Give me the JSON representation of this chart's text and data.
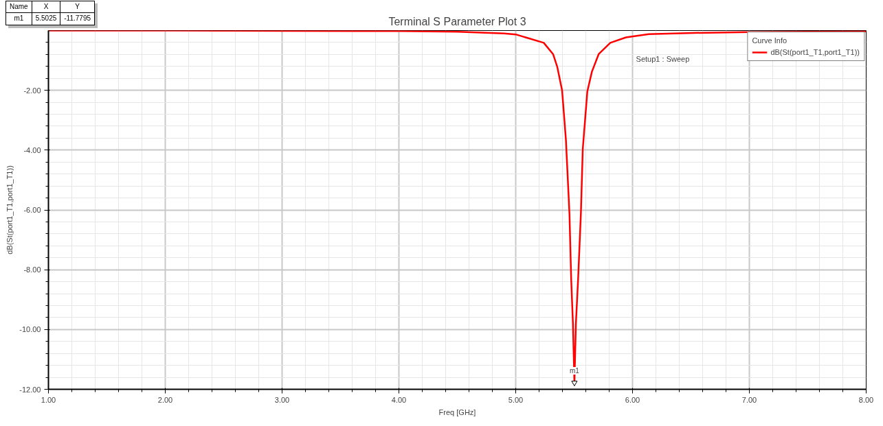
{
  "chart_data": {
    "type": "line",
    "title": "Terminal S Parameter Plot 3",
    "xlabel": "Freq [GHz]",
    "ylabel": "dB(St(port1_T1,port1_T1))",
    "legend_title": "Curve Info",
    "legend": "top right",
    "grid": true,
    "marker": "none",
    "line_style": "solid",
    "xlim": [
      1,
      8
    ],
    "ylim": [
      -12,
      0
    ],
    "xticks": [
      {
        "value": 1,
        "label": "1.00"
      },
      {
        "value": 2,
        "label": "2.00"
      },
      {
        "value": 3,
        "label": "3.00"
      },
      {
        "value": 4,
        "label": "4.00"
      },
      {
        "value": 5,
        "label": "5.00"
      },
      {
        "value": 6,
        "label": "6.00"
      },
      {
        "value": 7,
        "label": "7.00"
      },
      {
        "value": 8,
        "label": "8.00"
      }
    ],
    "yticks": [
      {
        "value": -12,
        "label": "-12.00"
      },
      {
        "value": -10,
        "label": "-10.00"
      },
      {
        "value": -8,
        "label": "-8.00"
      },
      {
        "value": -6,
        "label": "-6.00"
      },
      {
        "value": -4,
        "label": "-4.00"
      },
      {
        "value": -2,
        "label": "-2.00"
      }
    ],
    "series": [
      {
        "name": "dB(St(port1_T1,port1_T1))",
        "color": "#ff0000",
        "x": [
          1.0,
          2.0,
          3.0,
          4.0,
          4.5,
          4.9,
          5.0,
          5.24,
          5.32,
          5.356,
          5.397,
          5.43,
          5.46,
          5.475,
          5.49,
          5.5025,
          5.515,
          5.534,
          5.558,
          5.574,
          5.613,
          5.652,
          5.71,
          5.81,
          5.944,
          6.14,
          6.53,
          7.0,
          8.0
        ],
        "values": [
          0,
          0,
          -0.01,
          -0.02,
          -0.04,
          -0.1,
          -0.13,
          -0.41,
          -0.79,
          -1.22,
          -2.0,
          -3.67,
          -6.12,
          -8.33,
          -9.82,
          -11.78,
          -9.82,
          -8.33,
          -6.12,
          -3.97,
          -2.04,
          -1.38,
          -0.79,
          -0.41,
          -0.23,
          -0.12,
          -0.08,
          -0.05,
          -0.03
        ]
      }
    ],
    "annotations": [
      "Name",
      "X",
      "Y",
      "m1",
      "5.5025",
      "-11.7795",
      "Setup1 : Sweep",
      {
        "text": "m1",
        "x": 5.5025,
        "y": -11.7795
      }
    ]
  }
}
